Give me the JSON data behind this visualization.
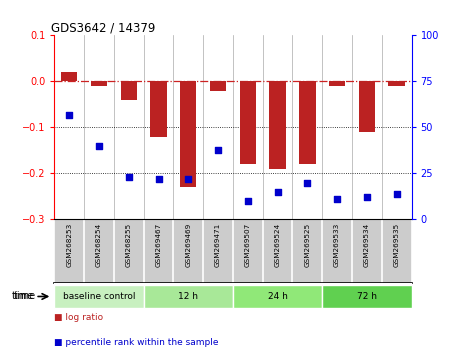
{
  "title": "GDS3642 / 14379",
  "samples": [
    "GSM268253",
    "GSM268254",
    "GSM268255",
    "GSM269467",
    "GSM269469",
    "GSM269471",
    "GSM269507",
    "GSM269524",
    "GSM269525",
    "GSM269533",
    "GSM269534",
    "GSM269535"
  ],
  "log_ratio": [
    0.02,
    -0.01,
    -0.04,
    -0.12,
    -0.23,
    -0.02,
    -0.18,
    -0.19,
    -0.18,
    -0.01,
    -0.11,
    -0.01
  ],
  "percentile_rank": [
    57,
    40,
    23,
    22,
    22,
    38,
    10,
    15,
    20,
    11,
    12,
    14
  ],
  "groups": [
    {
      "label": "baseline control",
      "start": 0,
      "end": 3
    },
    {
      "label": "12 h",
      "start": 3,
      "end": 6
    },
    {
      "label": "24 h",
      "start": 6,
      "end": 9
    },
    {
      "label": "72 h",
      "start": 9,
      "end": 12
    }
  ],
  "group_colors": [
    "#c8f0c0",
    "#a8e898",
    "#90e878",
    "#60d050"
  ],
  "ylim_left": [
    -0.3,
    0.1
  ],
  "ylim_right": [
    0,
    100
  ],
  "yticks_left": [
    -0.3,
    -0.2,
    -0.1,
    0.0,
    0.1
  ],
  "yticks_right": [
    0,
    25,
    50,
    75,
    100
  ],
  "bar_color": "#bb2222",
  "scatter_color": "#0000cc",
  "hline_color": "#cc2222",
  "bg_color": "#ffffff",
  "bar_width": 0.55,
  "sep_color": "#aaaaaa",
  "box_gray": "#cccccc"
}
